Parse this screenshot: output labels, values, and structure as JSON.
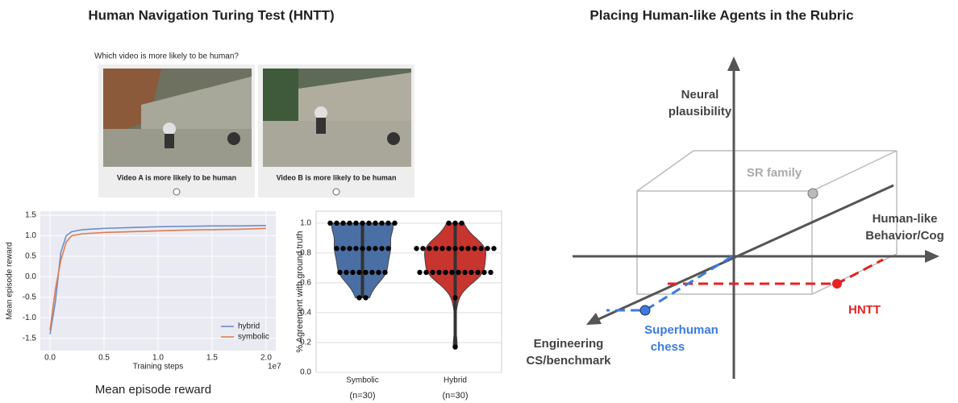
{
  "left_title": "Human Navigation Turing Test (HNTT)",
  "right_title": "Placing Human-like Agents in the Rubric",
  "hntt": {
    "question": "Which video is more likely to be human?",
    "options": [
      "Video A is more likely to be human",
      "Video B is more likely to be human"
    ]
  },
  "chart_data": [
    {
      "type": "line",
      "ylabel": "Mean episode reward",
      "xlabel": "Training steps",
      "x_offset_label": "1e7",
      "caption": "Mean episode reward",
      "x": [
        0,
        0.05,
        0.1,
        0.15,
        0.2,
        0.3,
        0.5,
        0.75,
        1.0,
        1.25,
        1.5,
        1.75,
        2.0
      ],
      "series": [
        {
          "name": "hybrid",
          "color": "#6a8fc8",
          "values": [
            -1.4,
            -0.6,
            0.6,
            1.0,
            1.1,
            1.15,
            1.18,
            1.2,
            1.22,
            1.23,
            1.24,
            1.24,
            1.25
          ]
        },
        {
          "name": "symbolic",
          "color": "#e07b4f",
          "values": [
            -1.3,
            -0.3,
            0.4,
            0.85,
            1.0,
            1.05,
            1.08,
            1.1,
            1.12,
            1.14,
            1.15,
            1.16,
            1.18
          ]
        }
      ],
      "xlim": [
        -0.09,
        2.09
      ],
      "ylim": [
        -1.8,
        1.6
      ],
      "xticks": [
        {
          "value": 0,
          "label": "0.0"
        },
        0.5,
        {
          "value": 1,
          "label": "1.0"
        },
        1.5,
        {
          "value": 2,
          "label": "2.0"
        }
      ],
      "yticks": [
        -1.5,
        {
          "value": -1,
          "label": "-1.0"
        },
        -0.5,
        {
          "value": 0,
          "label": "0.0"
        },
        0.5,
        {
          "value": 1,
          "label": "1.0"
        },
        1.5
      ],
      "legend": "lower right"
    },
    {
      "type": "violin",
      "ylabel": "% Agreement with ground truth",
      "categories": [
        "Symbolic",
        "Hybrid"
      ],
      "category_notes": [
        "(n=30)",
        "(n=30)"
      ],
      "series": [
        {
          "name": "Symbolic",
          "color": "#4a6fa5",
          "values": [
            1.0,
            1.0,
            1.0,
            1.0,
            1.0,
            1.0,
            1.0,
            1.0,
            1.0,
            1.0,
            1.0,
            0.83,
            0.83,
            0.83,
            0.83,
            0.83,
            0.83,
            0.83,
            0.83,
            0.83,
            0.67,
            0.67,
            0.67,
            0.67,
            0.67,
            0.67,
            0.67,
            0.67,
            0.5,
            0.5
          ]
        },
        {
          "name": "Hybrid",
          "color": "#c8342e",
          "values": [
            1.0,
            1.0,
            1.0,
            0.83,
            0.83,
            0.83,
            0.83,
            0.83,
            0.83,
            0.83,
            0.83,
            0.83,
            0.83,
            0.83,
            0.83,
            0.83,
            0.67,
            0.67,
            0.67,
            0.67,
            0.67,
            0.67,
            0.67,
            0.67,
            0.67,
            0.67,
            0.67,
            0.67,
            0.5,
            0.17
          ]
        }
      ],
      "ylim": [
        0,
        1.08
      ],
      "yticks": [
        {
          "value": 0,
          "label": "0.0"
        },
        0.2,
        0.4,
        0.6,
        0.8,
        {
          "value": 1,
          "label": "1.0"
        }
      ]
    }
  ],
  "rubric": {
    "y_axis": [
      "Neural",
      "plausibility"
    ],
    "x_axis": [
      "Human-like",
      "Behavior/Cog"
    ],
    "z_axis": [
      "Engineering",
      "CS/benchmark"
    ],
    "sr_family": "SR family",
    "superhuman": [
      "Superhuman",
      "chess"
    ],
    "hntt": "HNTT"
  }
}
